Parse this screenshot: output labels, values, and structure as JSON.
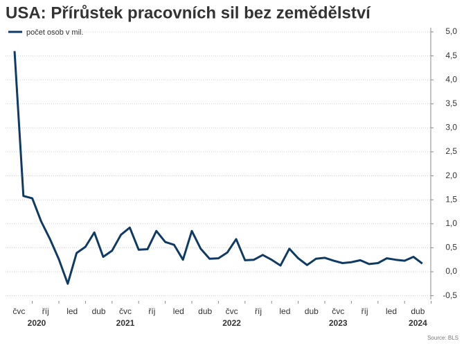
{
  "chart_data": {
    "type": "line",
    "title": "USA: Přírůstek pracovních sil bez zemědělství",
    "source": "Source: BLS",
    "categories": [
      null,
      "čvc",
      null,
      null,
      "říj",
      null,
      null,
      "led",
      null,
      null,
      "dub",
      null,
      null,
      "čvc",
      null,
      null,
      "říj",
      null,
      null,
      "led",
      null,
      null,
      "dub",
      null,
      null,
      "čvc",
      null,
      null,
      "říj",
      null,
      null,
      "led",
      null,
      null,
      "dub",
      null,
      null,
      "čvc",
      null,
      null,
      "říj",
      null,
      null,
      "led",
      null,
      null,
      "dub"
    ],
    "years": [
      "2020",
      "2021",
      "2022",
      "2023",
      "2024"
    ],
    "series": [
      {
        "name": "počet osob v mil.",
        "color": "#0f3a64",
        "values": [
          4.6,
          1.58,
          1.53,
          1.05,
          0.68,
          0.26,
          -0.25,
          0.39,
          0.52,
          0.82,
          0.31,
          0.44,
          0.77,
          0.92,
          0.46,
          0.47,
          0.85,
          0.62,
          0.56,
          0.25,
          0.85,
          0.48,
          0.27,
          0.28,
          0.4,
          0.68,
          0.24,
          0.25,
          0.35,
          0.25,
          0.13,
          0.48,
          0.28,
          0.14,
          0.27,
          0.29,
          0.23,
          0.18,
          0.2,
          0.24,
          0.16,
          0.18,
          0.28,
          0.25,
          0.23,
          0.31,
          0.17
        ]
      }
    ],
    "ylim": [
      -0.5,
      5.0
    ],
    "yticks": [
      {
        "value": -0.5,
        "label": "-0,5"
      },
      {
        "value": 0,
        "label": "0,0"
      },
      {
        "value": 0.5,
        "label": "0,5"
      },
      {
        "value": 1.0,
        "label": "1,0"
      },
      {
        "value": 1.5,
        "label": "1,5"
      },
      {
        "value": 2.0,
        "label": "2,0"
      },
      {
        "value": 2.5,
        "label": "2,5"
      },
      {
        "value": 3.0,
        "label": "3,0"
      },
      {
        "value": 3.5,
        "label": "3,5"
      },
      {
        "value": 4.0,
        "label": "4,0"
      },
      {
        "value": 4.5,
        "label": "4,5"
      },
      {
        "value": 5.0,
        "label": "5,0"
      }
    ],
    "grid": true,
    "legend": "top-left"
  }
}
